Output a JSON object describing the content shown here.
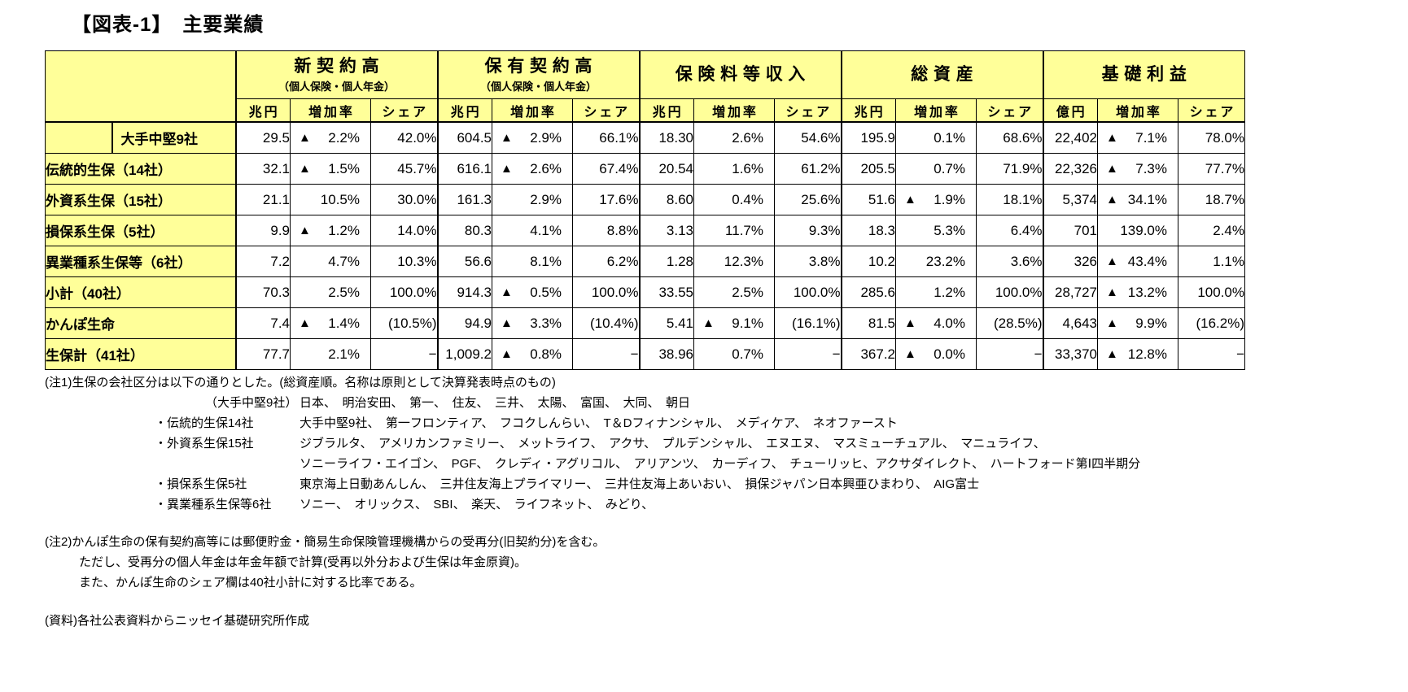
{
  "title": "【図表-1】　主要業績",
  "table": {
    "groups": [
      {
        "title": "新契約高",
        "subtitle": "（個人保険・個人年金）",
        "unit": "兆円"
      },
      {
        "title": "保有契約高",
        "subtitle": "（個人保険・個人年金）",
        "unit": "兆円"
      },
      {
        "title": "保険料等収入",
        "subtitle": "",
        "unit": "兆円"
      },
      {
        "title": "総資産",
        "subtitle": "",
        "unit": "兆円"
      },
      {
        "title": "基礎利益",
        "subtitle": "",
        "unit": "億円"
      }
    ],
    "subheaders": [
      "増加率",
      "シェア"
    ],
    "rows": [
      {
        "label": "大手中堅9社",
        "kind": "",
        "inset": true,
        "cells": [
          [
            "29.5",
            "▲ 2.2%",
            "42.0%"
          ],
          [
            "604.5",
            "▲ 2.9%",
            "66.1%"
          ],
          [
            "18.30",
            "2.6%",
            "54.6%"
          ],
          [
            "195.9",
            "0.1%",
            "68.6%"
          ],
          [
            "22,402",
            "▲ 7.1%",
            "78.0%"
          ]
        ]
      },
      {
        "label": "伝統的生保（14社）",
        "kind": "",
        "inset": false,
        "cells": [
          [
            "32.1",
            "▲ 1.5%",
            "45.7%"
          ],
          [
            "616.1",
            "▲ 2.6%",
            "67.4%"
          ],
          [
            "20.54",
            "1.6%",
            "61.2%"
          ],
          [
            "205.5",
            "0.7%",
            "71.9%"
          ],
          [
            "22,326",
            "▲ 7.3%",
            "77.7%"
          ]
        ]
      },
      {
        "label": "外資系生保（15社）",
        "kind": "",
        "inset": false,
        "cells": [
          [
            "21.1",
            "10.5%",
            "30.0%"
          ],
          [
            "161.3",
            "2.9%",
            "17.6%"
          ],
          [
            "8.60",
            "0.4%",
            "25.6%"
          ],
          [
            "51.6",
            "▲ 1.9%",
            "18.1%"
          ],
          [
            "5,374",
            "▲ 34.1%",
            "18.7%"
          ]
        ]
      },
      {
        "label": "損保系生保（5社）",
        "kind": "",
        "inset": false,
        "cells": [
          [
            "9.9",
            "▲ 1.2%",
            "14.0%"
          ],
          [
            "80.3",
            "4.1%",
            "8.8%"
          ],
          [
            "3.13",
            "11.7%",
            "9.3%"
          ],
          [
            "18.3",
            "5.3%",
            "6.4%"
          ],
          [
            "701",
            "139.0%",
            "2.4%"
          ]
        ]
      },
      {
        "label": "異業種系生保等（6社）",
        "kind": "",
        "inset": false,
        "cells": [
          [
            "7.2",
            "4.7%",
            "10.3%"
          ],
          [
            "56.6",
            "8.1%",
            "6.2%"
          ],
          [
            "1.28",
            "12.3%",
            "3.8%"
          ],
          [
            "10.2",
            "23.2%",
            "3.6%"
          ],
          [
            "326",
            "▲ 43.4%",
            "1.1%"
          ]
        ]
      },
      {
        "label": "小計（40社）",
        "kind": "subtotal",
        "inset": false,
        "cells": [
          [
            "70.3",
            "2.5%",
            "100.0%"
          ],
          [
            "914.3",
            "▲ 0.5%",
            "100.0%"
          ],
          [
            "33.55",
            "2.5%",
            "100.0%"
          ],
          [
            "285.6",
            "1.2%",
            "100.0%"
          ],
          [
            "28,727",
            "▲ 13.2%",
            "100.0%"
          ]
        ]
      },
      {
        "label": "かんぽ生命",
        "kind": "kampo",
        "inset": false,
        "cells": [
          [
            "7.4",
            "▲ 1.4%",
            "(10.5%)"
          ],
          [
            "94.9",
            "▲ 3.3%",
            "(10.4%)"
          ],
          [
            "5.41",
            "▲ 9.1%",
            "(16.1%)"
          ],
          [
            "81.5",
            "▲ 4.0%",
            "(28.5%)"
          ],
          [
            "4,643",
            "▲ 9.9%",
            "(16.2%)"
          ]
        ]
      },
      {
        "label": "生保計（41社）",
        "kind": "total",
        "inset": false,
        "cells": [
          [
            "77.7",
            "2.1%",
            "−"
          ],
          [
            "1,009.2",
            "▲ 0.8%",
            "−"
          ],
          [
            "38.96",
            "0.7%",
            "−"
          ],
          [
            "367.2",
            "▲ 0.0%",
            "−"
          ],
          [
            "33,370",
            "▲ 12.8%",
            "−"
          ]
        ]
      }
    ]
  },
  "notes": {
    "note1": {
      "head": "(注1)生保の会社区分は以下の通りとした。(総資産順。名称は原則として決算発表時点のもの)",
      "items": [
        {
          "term": "（大手中堅9社）",
          "desc": "日本、　明治安田、　第一、　住友、　三井、　太陽、　富国、　大同、　朝日"
        },
        {
          "term": "・伝統的生保14社",
          "desc": "大手中堅9社、　第一フロンティア、　フコクしんらい、　T＆Dフィナンシャル、　メディケア、　ネオファースト"
        },
        {
          "term": "・外資系生保15社",
          "desc": "ジブラルタ、　アメリカンファミリー、　メットライフ、　アクサ、　プルデンシャル、　エヌエヌ、　マスミューチュアル、　マニュライフ、",
          "desc2": "ソニーライフ・エイゴン、　PGF、　クレディ・アグリコル、　アリアンツ、　カーディフ、　チューリッヒ、アクサダイレクト、　ハートフォード第Ⅰ四半期分"
        },
        {
          "term": "・損保系生保5社",
          "desc": "東京海上日動あんしん、　三井住友海上プライマリー、　三井住友海上あいおい、　損保ジャパン日本興亜ひまわり、　AIG富士"
        },
        {
          "term": "・異業種系生保等6社",
          "desc": "ソニー、　オリックス、　SBI、　楽天、　ライフネット、　みどり、"
        }
      ]
    },
    "note2": {
      "line1": "(注2)かんぽ生命の保有契約高等には郵便貯金・簡易生命保険管理機構からの受再分(旧契約分)を含む。",
      "line2": "ただし、受再分の個人年金は年金年額で計算(受再以外分および生保は年金原資)。",
      "line3": "また、かんぽ生命のシェア欄は40社小計に対する比率である。"
    },
    "source": "(資料)各社公表資料からニッセイ基礎研究所作成"
  }
}
